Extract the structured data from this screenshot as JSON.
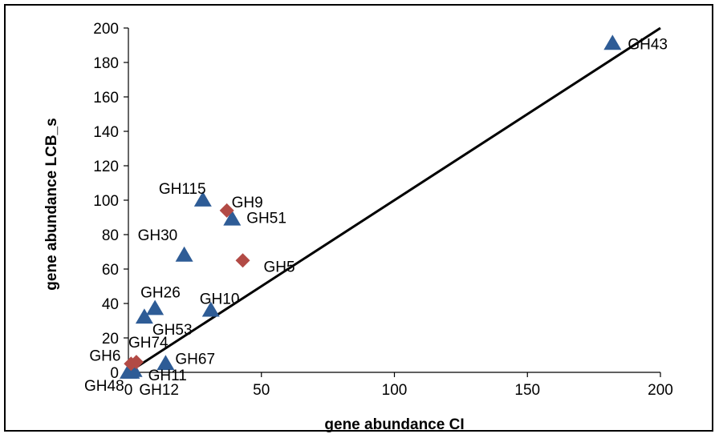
{
  "chart_data": {
    "type": "scatter",
    "title": "",
    "xlabel": "gene abundance CI",
    "ylabel": "gene abundance LCB_s",
    "xlim": [
      0,
      200
    ],
    "ylim": [
      0,
      200
    ],
    "x_ticks": [
      "0",
      "50",
      "100",
      "150",
      "200"
    ],
    "y_ticks": [
      "0",
      "20",
      "40",
      "60",
      "80",
      "100",
      "120",
      "140",
      "160",
      "180",
      "200"
    ],
    "grid": false,
    "legend": "none",
    "reference_line": {
      "from": [
        0,
        0
      ],
      "to": [
        200,
        200
      ],
      "color": "#000000"
    },
    "series": [
      {
        "marker": "triangle",
        "color": "#2E5C96",
        "points": [
          {
            "label": "GH43",
            "x": 182,
            "y": 191
          },
          {
            "label": "GH115",
            "x": 28,
            "y": 100
          },
          {
            "label": "GH51",
            "x": 39,
            "y": 89
          },
          {
            "label": "GH30",
            "x": 21,
            "y": 68
          },
          {
            "label": "GH26",
            "x": 10,
            "y": 37
          },
          {
            "label": "GH53",
            "x": 6,
            "y": 32
          },
          {
            "label": "GH10",
            "x": 31,
            "y": 36
          },
          {
            "label": "GH67",
            "x": 14,
            "y": 5
          },
          {
            "label": "GH11",
            "x": 2,
            "y": 1
          },
          {
            "label": "GH48",
            "x": 0,
            "y": 0
          },
          {
            "label": "GH12",
            "x": 1,
            "y": 0
          }
        ]
      },
      {
        "marker": "diamond",
        "color": "#B24A45",
        "points": [
          {
            "label": "GH9",
            "x": 37,
            "y": 94
          },
          {
            "label": "GH5",
            "x": 43,
            "y": 65
          },
          {
            "label": "GH74",
            "x": 3,
            "y": 6
          },
          {
            "label": "GH6",
            "x": 1,
            "y": 5
          }
        ]
      }
    ]
  }
}
